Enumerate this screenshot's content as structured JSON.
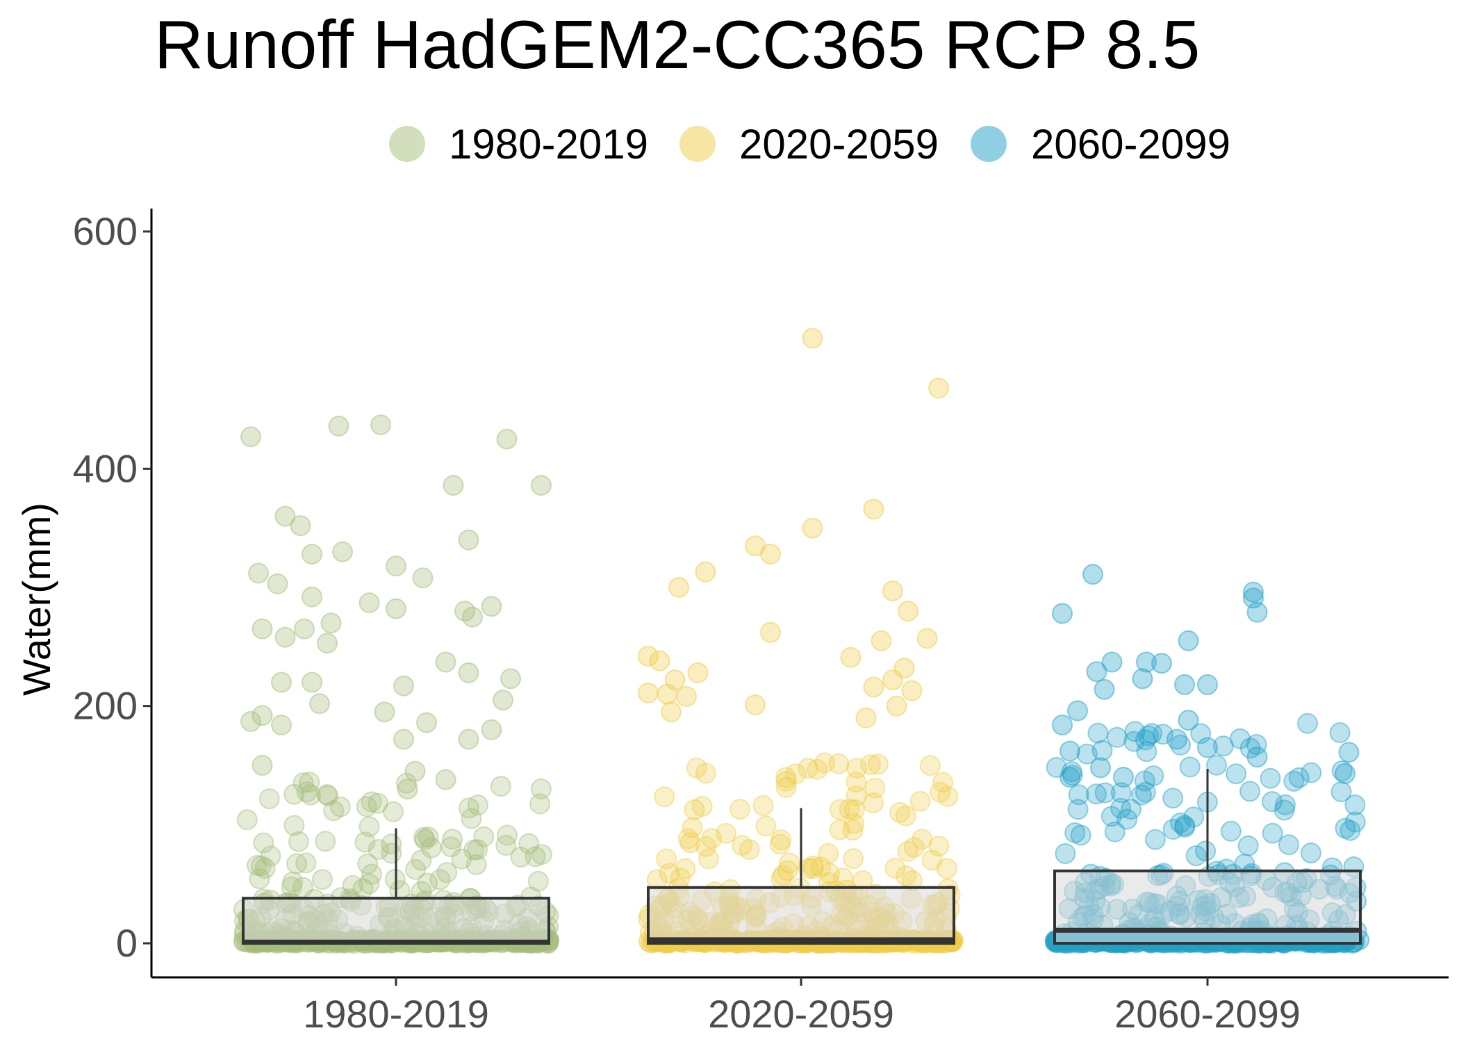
{
  "chart_data": {
    "type": "box+jitter",
    "title": "Runoff HadGEM2-CC365 RCP 8.5",
    "xlabel": "",
    "ylabel": "Water(mm)",
    "categories": [
      "1980-2019",
      "2020-2059",
      "2060-2099"
    ],
    "ylim": [
      -55,
      615
    ],
    "yticks": [
      0,
      200,
      400,
      600
    ],
    "legend_position": "top",
    "colors": {
      "1980-2019": "#a5bd7a",
      "2020-2059": "#f0cc4a",
      "2060-2099": "#22a0c8",
      "box_fill": "#d9d9d9",
      "box_stroke": "#333333"
    },
    "boxes": [
      {
        "name": "1980-2019",
        "q1": 0,
        "median": 1,
        "q3": 38,
        "whisker_high": 97,
        "whisker_low": 0
      },
      {
        "name": "2020-2059",
        "q1": 0,
        "median": 3,
        "q3": 47,
        "whisker_high": 114,
        "whisker_low": 0
      },
      {
        "name": "2060-2099",
        "q1": 0,
        "median": 11,
        "q3": 61,
        "whisker_high": 147,
        "whisker_low": 0
      }
    ],
    "series": [
      {
        "name": "1980-2019",
        "outliers": [
          [
            -0.38,
            427
          ],
          [
            -0.15,
            436
          ],
          [
            -0.04,
            437
          ],
          [
            0.29,
            425
          ],
          [
            0.38,
            386
          ],
          [
            0.15,
            386
          ],
          [
            -0.29,
            360
          ],
          [
            -0.25,
            352
          ],
          [
            -0.22,
            328
          ],
          [
            -0.14,
            330
          ],
          [
            0.19,
            340
          ],
          [
            0.0,
            318
          ],
          [
            0.07,
            308
          ],
          [
            -0.36,
            312
          ],
          [
            -0.31,
            303
          ],
          [
            -0.22,
            292
          ],
          [
            -0.17,
            270
          ],
          [
            -0.07,
            287
          ],
          [
            -0.35,
            265
          ],
          [
            -0.29,
            258
          ],
          [
            -0.24,
            265
          ],
          [
            -0.18,
            253
          ],
          [
            0.0,
            282
          ],
          [
            0.18,
            280
          ],
          [
            0.2,
            275
          ],
          [
            0.25,
            284
          ],
          [
            -0.3,
            220
          ],
          [
            -0.22,
            220
          ],
          [
            0.13,
            237
          ],
          [
            0.19,
            228
          ],
          [
            0.3,
            223
          ],
          [
            -0.2,
            202
          ],
          [
            0.02,
            217
          ],
          [
            0.28,
            205
          ],
          [
            -0.38,
            187
          ],
          [
            -0.35,
            192
          ],
          [
            -0.3,
            184
          ],
          [
            -0.03,
            195
          ],
          [
            0.08,
            186
          ],
          [
            0.25,
            180
          ],
          [
            0.02,
            172
          ],
          [
            0.19,
            172
          ],
          [
            -0.35,
            150
          ],
          [
            0.05,
            145
          ],
          [
            0.13,
            138
          ],
          [
            0.03,
            130
          ]
        ]
      },
      {
        "name": "2020-2059",
        "outliers": [
          [
            0.03,
            510
          ],
          [
            0.36,
            468
          ],
          [
            0.19,
            366
          ],
          [
            0.03,
            350
          ],
          [
            -0.12,
            335
          ],
          [
            -0.08,
            328
          ],
          [
            -0.25,
            313
          ],
          [
            -0.32,
            300
          ],
          [
            0.24,
            297
          ],
          [
            0.28,
            280
          ],
          [
            -0.08,
            262
          ],
          [
            0.33,
            257
          ],
          [
            0.21,
            255
          ],
          [
            -0.4,
            242
          ],
          [
            -0.37,
            238
          ],
          [
            -0.33,
            222
          ],
          [
            -0.27,
            228
          ],
          [
            0.13,
            241
          ],
          [
            0.27,
            232
          ],
          [
            0.24,
            222
          ],
          [
            -0.4,
            211
          ],
          [
            -0.35,
            210
          ],
          [
            -0.3,
            208
          ],
          [
            -0.34,
            195
          ],
          [
            -0.12,
            201
          ],
          [
            0.19,
            216
          ],
          [
            0.29,
            213
          ],
          [
            0.25,
            200
          ],
          [
            0.17,
            190
          ]
        ]
      },
      {
        "name": "2060-2099",
        "outliers": [
          [
            -0.3,
            311
          ],
          [
            0.12,
            296
          ],
          [
            0.12,
            291
          ],
          [
            0.13,
            279
          ],
          [
            -0.38,
            278
          ],
          [
            -0.05,
            255
          ],
          [
            -0.25,
            237
          ],
          [
            -0.16,
            237
          ],
          [
            -0.12,
            236
          ],
          [
            -0.29,
            229
          ],
          [
            -0.17,
            223
          ],
          [
            -0.06,
            218
          ],
          [
            0.0,
            218
          ],
          [
            -0.27,
            214
          ],
          [
            -0.34,
            196
          ],
          [
            -0.05,
            188
          ],
          [
            -0.38,
            184
          ],
          [
            -0.08,
            172
          ],
          [
            0.0,
            165
          ],
          [
            0.13,
            157
          ],
          [
            -0.36,
            162
          ],
          [
            0.37,
            161
          ],
          [
            -0.28,
            148
          ],
          [
            0.36,
            143
          ],
          [
            -0.36,
            140
          ],
          [
            -0.22,
            140
          ]
        ]
      }
    ]
  }
}
